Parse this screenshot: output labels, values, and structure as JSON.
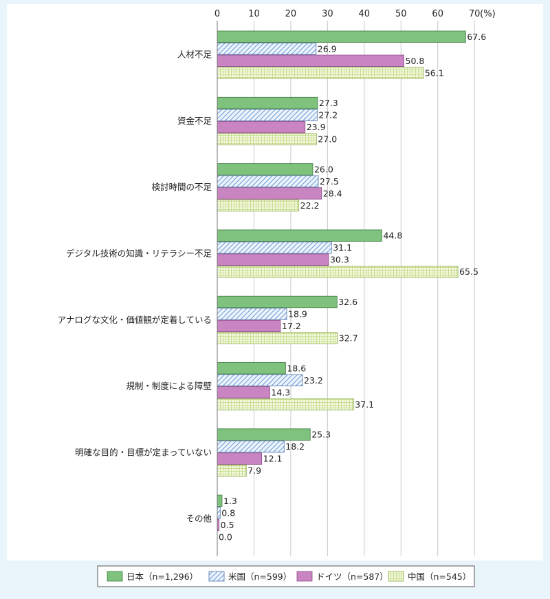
{
  "chart_data": {
    "type": "bar",
    "orientation": "horizontal",
    "unit_label": "(%)",
    "xlim": [
      0,
      70
    ],
    "xticks": [
      "0",
      "10",
      "20",
      "30",
      "40",
      "50",
      "60",
      "70"
    ],
    "grid": true,
    "legend_position": "bottom",
    "categories": [
      "人材不足",
      "資金不足",
      "検討時間の不足",
      "デジタル技術の知識・リテラシー不足",
      "アナログな文化・価値観が定着している",
      "規制・制度による障壁",
      "明確な目的・目標が定まっていない",
      "その他"
    ],
    "series": [
      {
        "name": "日本（n=1,296）",
        "color": "#7ec27e",
        "pattern": "solid",
        "values": [
          67.6,
          27.3,
          26.0,
          44.8,
          32.6,
          18.6,
          25.3,
          1.3
        ],
        "labels": [
          "67.6",
          "27.3",
          "26.0",
          "44.8",
          "32.6",
          "18.6",
          "25.3",
          "1.3"
        ]
      },
      {
        "name": "米国（n=599）",
        "color": "#6f9fd8",
        "pattern": "diagonal-hatch",
        "values": [
          26.9,
          27.2,
          27.5,
          31.1,
          18.9,
          23.2,
          18.2,
          0.8
        ],
        "labels": [
          "26.9",
          "27.2",
          "27.5",
          "31.1",
          "18.9",
          "23.2",
          "18.2",
          "0.8"
        ]
      },
      {
        "name": "ドイツ（n=587）",
        "color": "#c985c2",
        "pattern": "solid",
        "values": [
          50.8,
          23.9,
          28.4,
          30.3,
          17.2,
          14.3,
          12.1,
          0.5
        ],
        "labels": [
          "50.8",
          "23.9",
          "28.4",
          "30.3",
          "17.2",
          "14.3",
          "12.1",
          "0.5"
        ]
      },
      {
        "name": "中国（n=545）",
        "color": "#c8e08a",
        "pattern": "grid",
        "values": [
          56.1,
          27.0,
          22.2,
          65.5,
          32.7,
          37.1,
          7.9,
          0.0
        ],
        "labels": [
          "56.1",
          "27.0",
          "22.2",
          "65.5",
          "32.7",
          "37.1",
          "7.9",
          "0.0"
        ]
      }
    ]
  }
}
